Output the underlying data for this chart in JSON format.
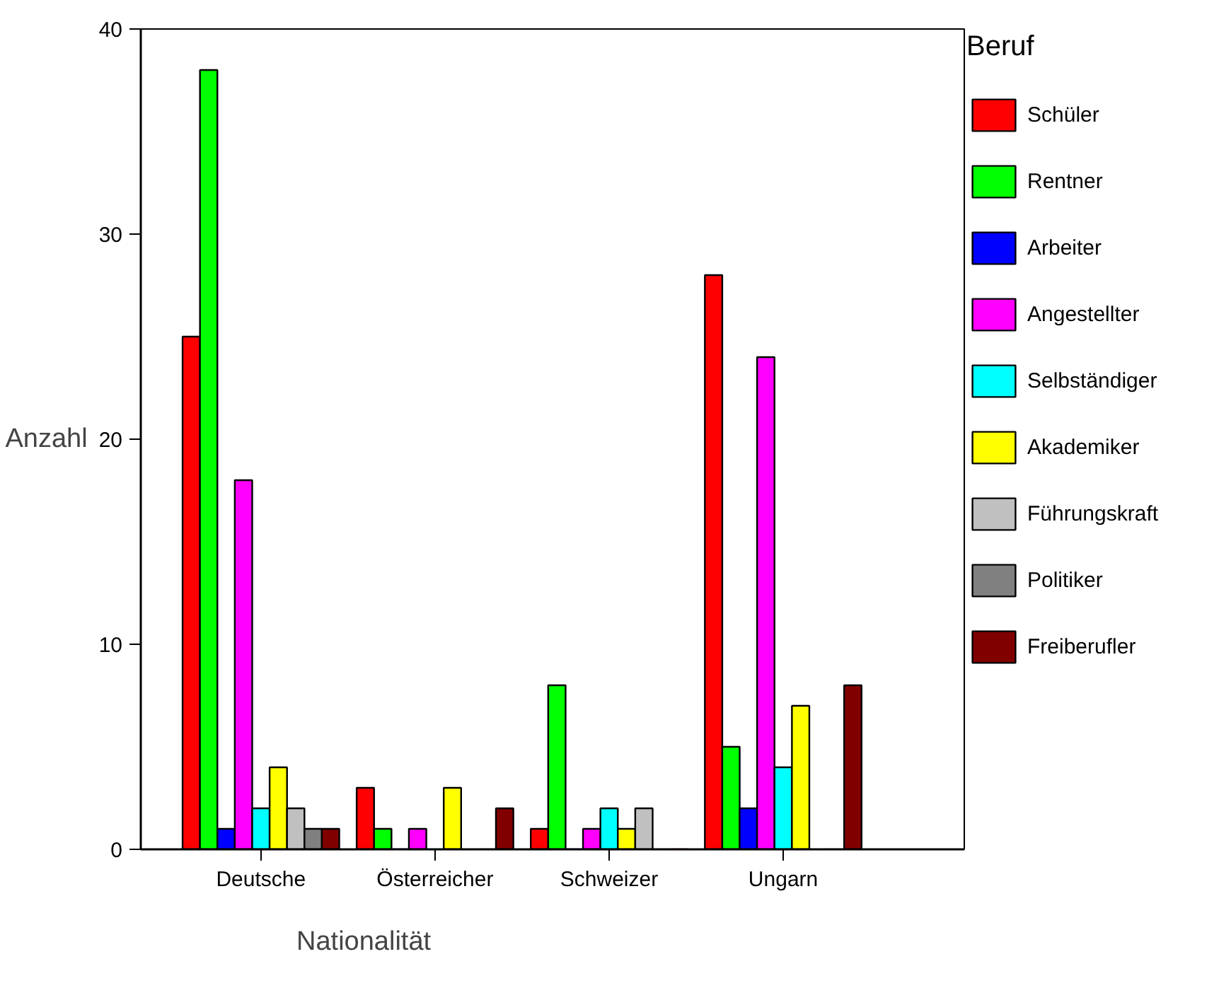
{
  "chart_data": {
    "type": "bar",
    "xlabel": "Nationalität",
    "ylabel": "Anzahl",
    "legend_title": "Beruf",
    "categories": [
      "Deutsche",
      "Österreicher",
      "Schweizer",
      "Ungarn"
    ],
    "series": [
      {
        "name": "Schüler",
        "color": "#ff0000",
        "values": [
          25,
          3,
          1,
          28
        ]
      },
      {
        "name": "Rentner",
        "color": "#00ff00",
        "values": [
          38,
          1,
          8,
          5
        ]
      },
      {
        "name": "Arbeiter",
        "color": "#0000ff",
        "values": [
          1,
          0,
          0,
          2
        ]
      },
      {
        "name": "Angestellter",
        "color": "#ff00ff",
        "values": [
          18,
          1,
          1,
          24
        ]
      },
      {
        "name": "Selbständiger",
        "color": "#00ffff",
        "values": [
          2,
          0,
          2,
          4
        ]
      },
      {
        "name": "Akademiker",
        "color": "#ffff00",
        "values": [
          4,
          3,
          1,
          7
        ]
      },
      {
        "name": "Führungskraft",
        "color": "#c0c0c0",
        "values": [
          2,
          0,
          2,
          0
        ]
      },
      {
        "name": "Politiker",
        "color": "#808080",
        "values": [
          1,
          0,
          0,
          0
        ]
      },
      {
        "name": "Freiberufler",
        "color": "#800000",
        "values": [
          1,
          2,
          0,
          8
        ]
      }
    ],
    "ylim": [
      0,
      40
    ],
    "yticks": [
      0,
      10,
      20,
      30,
      40
    ],
    "grid": false,
    "legend": "right"
  }
}
